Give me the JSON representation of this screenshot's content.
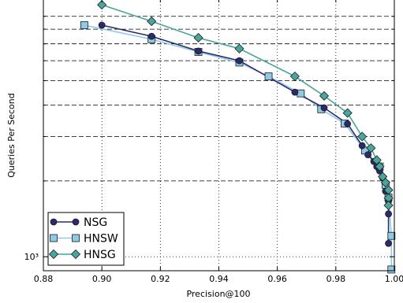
{
  "chart_data": {
    "type": "line",
    "title": "",
    "xlabel": "Precision@100",
    "ylabel": "Queries Per Second",
    "x_ticks": [
      0.88,
      0.9,
      0.92,
      0.94,
      0.96,
      0.98,
      1.0
    ],
    "x_tick_labels": [
      "0.88",
      "0.90",
      "0.92",
      "0.94",
      "0.96",
      "0.98",
      "1.00"
    ],
    "xlim": [
      0.88,
      1.0
    ],
    "y_scale": "log",
    "ylim": [
      880,
      10600
    ],
    "y_major_ticks": [
      1000
    ],
    "y_tick_labels": [
      "10³"
    ],
    "y_minor_ticks": [
      2000,
      3000,
      4000,
      5000,
      6000,
      7000,
      8000,
      9000
    ],
    "grid": true,
    "legend_position": "lower-left",
    "series": [
      {
        "name": "NSG",
        "color": "#2b2a6f",
        "marker": "circle",
        "x": [
          0.9,
          0.917,
          0.933,
          0.947,
          0.966,
          0.976,
          0.984,
          0.989,
          0.991,
          0.993,
          0.994,
          0.995,
          0.996,
          0.997,
          0.998,
          0.998,
          0.998
        ],
        "y": [
          8300,
          7500,
          6550,
          6000,
          4500,
          3900,
          3370,
          2760,
          2540,
          2390,
          2280,
          2190,
          2060,
          1820,
          1660,
          1480,
          1130
        ]
      },
      {
        "name": "HNSW",
        "color": "#8ec9e6",
        "marker": "square",
        "x": [
          0.894,
          0.917,
          0.933,
          0.947,
          0.957,
          0.968,
          0.975,
          0.983,
          0.99,
          0.995,
          0.997,
          0.998,
          0.999,
          0.999
        ],
        "y": [
          8300,
          7300,
          6500,
          5900,
          5200,
          4450,
          3850,
          3380,
          2640,
          2280,
          1930,
          1720,
          1210,
          890
        ]
      },
      {
        "name": "HNSG",
        "color": "#4aa59c",
        "marker": "diamond",
        "x": [
          0.9,
          0.917,
          0.933,
          0.947,
          0.966,
          0.976,
          0.984,
          0.989,
          0.992,
          0.994,
          0.995,
          0.996,
          0.997,
          0.998,
          0.998,
          0.998
        ],
        "y": [
          10000,
          8600,
          7400,
          6700,
          5200,
          4350,
          3720,
          3000,
          2700,
          2420,
          2280,
          2080,
          1970,
          1840,
          1710,
          1600
        ]
      }
    ]
  }
}
